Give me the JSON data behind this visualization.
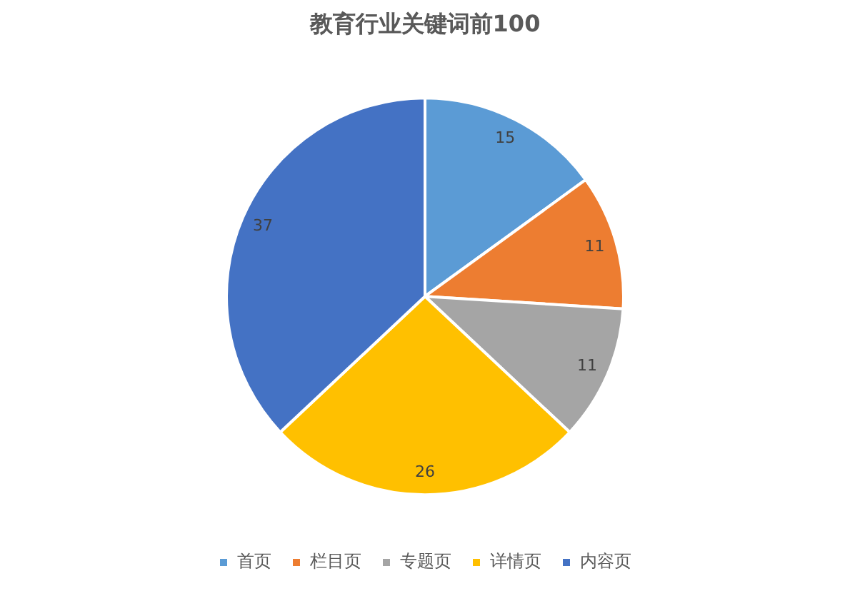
{
  "chart_data": {
    "type": "pie",
    "title": "教育行业关键词前100",
    "categories": [
      "首页",
      "栏目页",
      "专题页",
      "详情页",
      "内容页"
    ],
    "values": [
      15,
      11,
      11,
      26,
      37
    ],
    "colors": [
      "#5b9bd5",
      "#ed7d31",
      "#a5a5a5",
      "#ffc000",
      "#4472c4"
    ],
    "data_labels": true,
    "legend": "bottom"
  }
}
